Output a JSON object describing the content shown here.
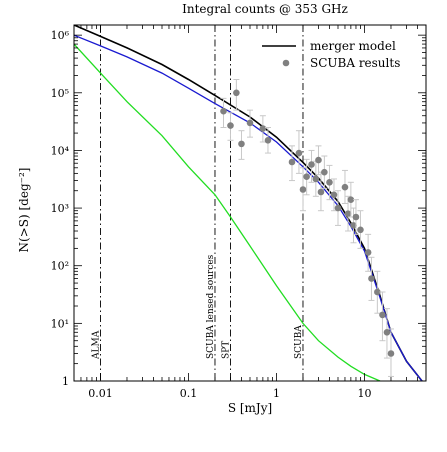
{
  "chart_data": {
    "type": "line",
    "title": "Integral counts @ 353 GHz",
    "xlabel": "S [mJy]",
    "ylabel": "N(>S) [deg⁻²]",
    "xscale": "log",
    "yscale": "log",
    "xlim": [
      0.005,
      50
    ],
    "ylim": [
      1,
      1500000
    ],
    "x_tick_labels": [
      {
        "value": 0.01,
        "label": "0.01"
      },
      {
        "value": 0.1,
        "label": "0.1"
      },
      {
        "value": 1,
        "label": "1"
      },
      {
        "value": 10,
        "label": "10"
      }
    ],
    "y_tick_labels": [
      {
        "value": 1,
        "label": "1"
      },
      {
        "value": 10,
        "label": "10¹"
      },
      {
        "value": 100,
        "label": "10²"
      },
      {
        "value": 1000,
        "label": "10³"
      },
      {
        "value": 10000,
        "label": "10⁴"
      },
      {
        "value": 100000,
        "label": "10⁵"
      },
      {
        "value": 1000000,
        "label": "10⁶"
      }
    ],
    "legend": {
      "position": "top-right",
      "entries": [
        {
          "label": "merger model",
          "kind": "line",
          "color": "#000000"
        },
        {
          "label": "SCUBA results",
          "kind": "marker",
          "color": "#808080"
        }
      ]
    },
    "series": [
      {
        "name": "merger model",
        "color": "#000000",
        "x": [
          0.005,
          0.01,
          0.02,
          0.05,
          0.1,
          0.2,
          0.5,
          1,
          2,
          3,
          5,
          7,
          10,
          15,
          20,
          30,
          45
        ],
        "y": [
          1500000,
          950000,
          600000,
          310000,
          170000,
          90000,
          38000,
          17000,
          6200,
          3300,
          1300,
          550,
          200,
          30,
          7,
          2.2,
          1
        ]
      },
      {
        "color": "#1a1ad0",
        "x": [
          0.005,
          0.01,
          0.02,
          0.05,
          0.1,
          0.2,
          0.5,
          1,
          2,
          3,
          5,
          7,
          10,
          15,
          20,
          30,
          45
        ],
        "y": [
          1000000,
          650000,
          420000,
          220000,
          120000,
          65000,
          30000,
          14000,
          5200,
          2800,
          1100,
          480,
          180,
          28,
          7,
          2.2,
          1
        ]
      },
      {
        "color": "#22dd22",
        "x": [
          0.005,
          0.01,
          0.02,
          0.05,
          0.1,
          0.2,
          0.3,
          0.5,
          1,
          2,
          3,
          5,
          7,
          10,
          15
        ],
        "y": [
          700000,
          220000,
          70000,
          18000,
          5200,
          1700,
          700,
          220,
          45,
          10,
          5,
          2.6,
          1.8,
          1.3,
          1
        ]
      }
    ],
    "points": {
      "name": "SCUBA results",
      "color": "#808080",
      "data": [
        {
          "x": 0.25,
          "y": 48000,
          "lo": 25000,
          "hi": 80000
        },
        {
          "x": 0.3,
          "y": 27000,
          "lo": 15000,
          "hi": 45000
        },
        {
          "x": 0.35,
          "y": 100000,
          "lo": 50000,
          "hi": 170000
        },
        {
          "x": 0.4,
          "y": 13000,
          "lo": 7000,
          "hi": 22000
        },
        {
          "x": 0.5,
          "y": 30000,
          "lo": 17000,
          "hi": 50000
        },
        {
          "x": 0.7,
          "y": 24000,
          "lo": 14000,
          "hi": 40000
        },
        {
          "x": 0.8,
          "y": 15000,
          "lo": 9000,
          "hi": 25000
        },
        {
          "x": 1.5,
          "y": 6300,
          "lo": 3000,
          "hi": 12000
        },
        {
          "x": 1.8,
          "y": 9000,
          "lo": 4000,
          "hi": 22000
        },
        {
          "x": 2.0,
          "y": 2100,
          "lo": 900,
          "hi": 5000
        },
        {
          "x": 2.2,
          "y": 3500,
          "lo": 1700,
          "hi": 7000
        },
        {
          "x": 2.5,
          "y": 5700,
          "lo": 2800,
          "hi": 10000
        },
        {
          "x": 2.8,
          "y": 3200,
          "lo": 1600,
          "hi": 6500
        },
        {
          "x": 3.0,
          "y": 6800,
          "lo": 3800,
          "hi": 12000
        },
        {
          "x": 3.2,
          "y": 1900,
          "lo": 900,
          "hi": 4200
        },
        {
          "x": 3.5,
          "y": 4200,
          "lo": 2200,
          "hi": 8000
        },
        {
          "x": 4.0,
          "y": 2800,
          "lo": 1400,
          "hi": 5500
        },
        {
          "x": 4.5,
          "y": 1700,
          "lo": 900,
          "hi": 3200
        },
        {
          "x": 5.0,
          "y": 1000,
          "lo": 500,
          "hi": 2000
        },
        {
          "x": 6.0,
          "y": 2300,
          "lo": 1200,
          "hi": 4500
        },
        {
          "x": 6.5,
          "y": 800,
          "lo": 400,
          "hi": 1600
        },
        {
          "x": 7.0,
          "y": 1400,
          "lo": 700,
          "hi": 2800
        },
        {
          "x": 7.5,
          "y": 500,
          "lo": 250,
          "hi": 1000
        },
        {
          "x": 8.0,
          "y": 700,
          "lo": 350,
          "hi": 1400
        },
        {
          "x": 9.0,
          "y": 420,
          "lo": 200,
          "hi": 900
        },
        {
          "x": 11.0,
          "y": 170,
          "lo": 80,
          "hi": 350
        },
        {
          "x": 12.0,
          "y": 60,
          "lo": 25,
          "hi": 140
        },
        {
          "x": 14.0,
          "y": 35,
          "lo": 15,
          "hi": 80
        },
        {
          "x": 16.0,
          "y": 14,
          "lo": 5,
          "hi": 35
        },
        {
          "x": 18.0,
          "y": 7,
          "lo": 2.5,
          "hi": 18
        },
        {
          "x": 20.0,
          "y": 3,
          "lo": 1.2,
          "hi": 8
        }
      ]
    },
    "vertical_lines": [
      {
        "x": 0.01,
        "label": "ALMA"
      },
      {
        "x": 0.2,
        "label": "SCUBA lensed sources"
      },
      {
        "x": 0.3,
        "label": "SPT"
      },
      {
        "x": 2.0,
        "label": "SCUBA"
      }
    ]
  }
}
